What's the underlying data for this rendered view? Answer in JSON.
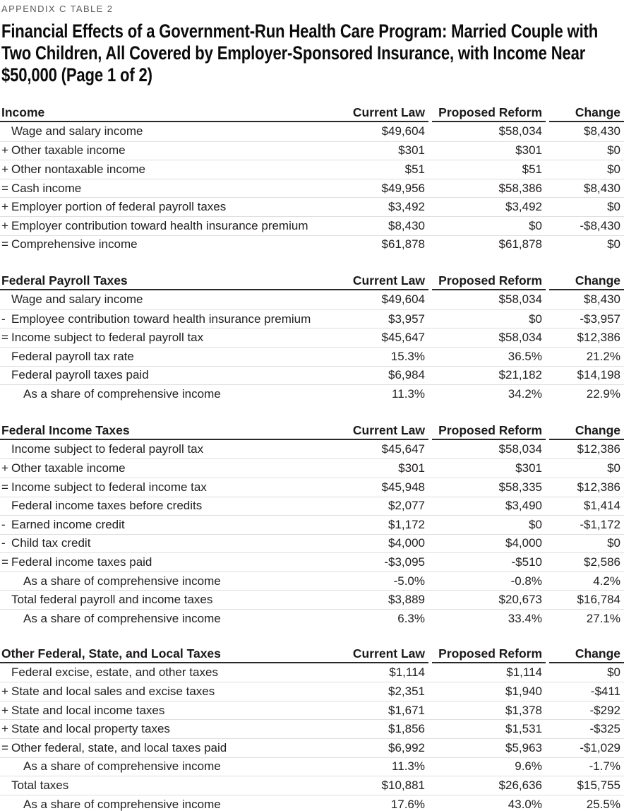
{
  "page": {
    "eyebrow": "APPENDIX C TABLE 2",
    "title": "Financial Effects of a Government-Run Health Care Program: Married Couple with Two Children, All Covered by Employer-Sponsored Insurance, with Income Near $50,000 (Page 1 of 2)"
  },
  "columns": [
    "Current Law",
    "Proposed Reform",
    "Change"
  ],
  "colors": {
    "text": "#232021",
    "eyebrow_gray": "#5b5c5e",
    "header_rule": "#2a272a",
    "row_separator": "#dfdfdf",
    "background": "#ffffff"
  },
  "tables": [
    {
      "title": "Income",
      "rows": [
        {
          "prefix": "",
          "label": "Wage and salary income",
          "indent": false,
          "values": [
            "$49,604",
            "$58,034",
            "$8,430"
          ]
        },
        {
          "prefix": "+",
          "label": "Other taxable income",
          "indent": false,
          "values": [
            "$301",
            "$301",
            "$0"
          ]
        },
        {
          "prefix": "+",
          "label": "Other nontaxable income",
          "indent": false,
          "values": [
            "$51",
            "$51",
            "$0"
          ]
        },
        {
          "prefix": "=",
          "label": "Cash income",
          "indent": false,
          "values": [
            "$49,956",
            "$58,386",
            "$8,430"
          ]
        },
        {
          "prefix": "+",
          "label": "Employer portion of federal payroll taxes",
          "indent": false,
          "values": [
            "$3,492",
            "$3,492",
            "$0"
          ]
        },
        {
          "prefix": "+",
          "label": "Employer contribution toward health insurance premium",
          "indent": false,
          "values": [
            "$8,430",
            "$0",
            "-$8,430"
          ]
        },
        {
          "prefix": "=",
          "label": "Comprehensive income",
          "indent": false,
          "values": [
            "$61,878",
            "$61,878",
            "$0"
          ]
        }
      ]
    },
    {
      "title": "Federal Payroll Taxes",
      "rows": [
        {
          "prefix": "",
          "label": "Wage and salary income",
          "indent": false,
          "values": [
            "$49,604",
            "$58,034",
            "$8,430"
          ]
        },
        {
          "prefix": "-",
          "label": "Employee contribution toward health insurance premium",
          "indent": false,
          "values": [
            "$3,957",
            "$0",
            "-$3,957"
          ]
        },
        {
          "prefix": "=",
          "label": "Income subject to federal payroll tax",
          "indent": false,
          "values": [
            "$45,647",
            "$58,034",
            "$12,386"
          ]
        },
        {
          "prefix": "",
          "label": "Federal payroll tax rate",
          "indent": false,
          "values": [
            "15.3%",
            "36.5%",
            "21.2%"
          ]
        },
        {
          "prefix": "",
          "label": "Federal payroll taxes paid",
          "indent": false,
          "values": [
            "$6,984",
            "$21,182",
            "$14,198"
          ]
        },
        {
          "prefix": "",
          "label": "As a share of comprehensive income",
          "indent": true,
          "values": [
            "11.3%",
            "34.2%",
            "22.9%"
          ]
        }
      ]
    },
    {
      "title": "Federal Income Taxes",
      "rows": [
        {
          "prefix": "",
          "label": "Income subject to federal payroll tax",
          "indent": false,
          "values": [
            "$45,647",
            "$58,034",
            "$12,386"
          ]
        },
        {
          "prefix": "+",
          "label": "Other taxable income",
          "indent": false,
          "values": [
            "$301",
            "$301",
            "$0"
          ]
        },
        {
          "prefix": "=",
          "label": "Income subject to federal income tax",
          "indent": false,
          "values": [
            "$45,948",
            "$58,335",
            "$12,386"
          ]
        },
        {
          "prefix": "",
          "label": "Federal income taxes before credits",
          "indent": false,
          "values": [
            "$2,077",
            "$3,490",
            "$1,414"
          ]
        },
        {
          "prefix": "-",
          "label": "Earned income credit",
          "indent": false,
          "values": [
            "$1,172",
            "$0",
            "-$1,172"
          ]
        },
        {
          "prefix": "-",
          "label": "Child tax credit",
          "indent": false,
          "values": [
            "$4,000",
            "$4,000",
            "$0"
          ]
        },
        {
          "prefix": "=",
          "label": "Federal income taxes paid",
          "indent": false,
          "values": [
            "-$3,095",
            "-$510",
            "$2,586"
          ]
        },
        {
          "prefix": "",
          "label": "As a share of comprehensive income",
          "indent": true,
          "values": [
            "-5.0%",
            "-0.8%",
            "4.2%"
          ]
        },
        {
          "prefix": "",
          "label": "Total federal payroll and income taxes",
          "indent": false,
          "values": [
            "$3,889",
            "$20,673",
            "$16,784"
          ]
        },
        {
          "prefix": "",
          "label": "As a share of comprehensive income",
          "indent": true,
          "values": [
            "6.3%",
            "33.4%",
            "27.1%"
          ]
        }
      ]
    },
    {
      "title": "Other Federal, State, and Local Taxes",
      "rows": [
        {
          "prefix": "",
          "label": "Federal excise, estate, and other taxes",
          "indent": false,
          "values": [
            "$1,114",
            "$1,114",
            "$0"
          ]
        },
        {
          "prefix": "+",
          "label": "State and local sales and excise taxes",
          "indent": false,
          "values": [
            "$2,351",
            "$1,940",
            "-$411"
          ]
        },
        {
          "prefix": "+",
          "label": "State and local income taxes",
          "indent": false,
          "values": [
            "$1,671",
            "$1,378",
            "-$292"
          ]
        },
        {
          "prefix": "+",
          "label": "State and local property taxes",
          "indent": false,
          "values": [
            "$1,856",
            "$1,531",
            "-$325"
          ]
        },
        {
          "prefix": "=",
          "label": "Other federal, state, and local taxes paid",
          "indent": false,
          "values": [
            "$6,992",
            "$5,963",
            "-$1,029"
          ]
        },
        {
          "prefix": "",
          "label": "As a share of comprehensive income",
          "indent": true,
          "values": [
            "11.3%",
            "9.6%",
            "-1.7%"
          ]
        },
        {
          "prefix": "",
          "label": "Total taxes",
          "indent": false,
          "values": [
            "$10,881",
            "$26,636",
            "$15,755"
          ]
        },
        {
          "prefix": "",
          "label": "As a share of comprehensive income",
          "indent": true,
          "values": [
            "17.6%",
            "43.0%",
            "25.5%"
          ]
        }
      ]
    }
  ]
}
